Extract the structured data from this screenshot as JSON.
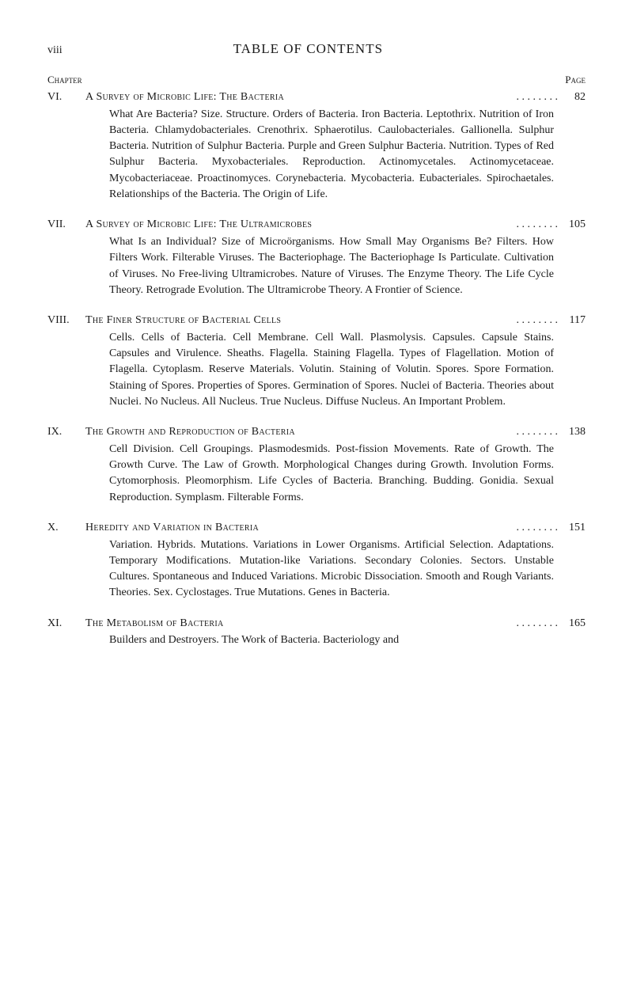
{
  "header": {
    "page_numeral": "viii",
    "title": "TABLE OF CONTENTS",
    "chapter_head": "Chapter",
    "page_head": "Page"
  },
  "chapters": [
    {
      "num": "VI.",
      "title": "A Survey of Microbic Life: The Bacteria",
      "page": "82",
      "desc": "What Are Bacteria? Size. Structure. Orders of Bacteria. Iron Bacteria. Leptothrix. Nutrition of Iron Bacteria. Chlamydobacteriales. Crenothrix. Sphaerotilus. Caulobacteriales. Gallionella. Sulphur Bacteria. Nutrition of Sulphur Bacteria. Purple and Green Sulphur Bacteria. Nutrition. Types of Red Sulphur Bacteria. Myxobacteriales. Reproduction. Actinomycetales. Actinomycetaceae. Mycobacteriaceae. Proactinomyces. Corynebacteria. Mycobacteria. Eubacteriales. Spirochaetales. Relationships of the Bacteria. The Origin of Life."
    },
    {
      "num": "VII.",
      "title": "A Survey of Microbic Life: The Ultramicrobes",
      "page": "105",
      "desc": "What Is an Individual? Size of Microörganisms. How Small May Organisms Be? Filters. How Filters Work. Filterable Viruses. The Bacteriophage. The Bacteriophage Is Particulate. Cultivation of Viruses. No Free-living Ultramicrobes. Nature of Viruses. The Enzyme Theory. The Life Cycle Theory. Retrograde Evolution. The Ultramicrobe Theory. A Frontier of Science."
    },
    {
      "num": "VIII.",
      "title": "The Finer Structure of Bacterial Cells",
      "page": "117",
      "desc": "Cells. Cells of Bacteria. Cell Membrane. Cell Wall. Plasmolysis. Capsules. Capsule Stains. Capsules and Virulence. Sheaths. Flagella. Staining Flagella. Types of Flagellation. Motion of Flagella. Cytoplasm. Reserve Materials. Volutin. Staining of Volutin. Spores. Spore Formation. Staining of Spores. Properties of Spores. Germination of Spores. Nuclei of Bacteria. Theories about Nuclei. No Nucleus. All Nucleus. True Nucleus. Diffuse Nucleus. An Important Problem."
    },
    {
      "num": "IX.",
      "title": "The Growth and Reproduction of Bacteria",
      "page": "138",
      "desc": "Cell Division. Cell Groupings. Plasmodesmids. Post-fission Movements. Rate of Growth. The Growth Curve. The Law of Growth. Morphological Changes during Growth. Involution Forms. Cytomorphosis. Pleomorphism. Life Cycles of Bacteria. Branching. Budding. Gonidia. Sexual Reproduction. Symplasm. Filterable Forms."
    },
    {
      "num": "X.",
      "title": "Heredity and Variation in Bacteria",
      "page": "151",
      "desc": "Variation. Hybrids. Mutations. Variations in Lower Organisms. Artificial Selection. Adaptations. Temporary Modifications. Mutation-like Variations. Secondary Colonies. Sectors. Unstable Cultures. Spontaneous and Induced Variations. Microbic Dissociation. Smooth and Rough Variants. Theories. Sex. Cyclostages. True Mutations. Genes in Bacteria."
    },
    {
      "num": "XI.",
      "title": "The Metabolism of Bacteria",
      "page": "165",
      "desc": "Builders and Destroyers. The Work of Bacteria. Bacteriology and"
    }
  ]
}
